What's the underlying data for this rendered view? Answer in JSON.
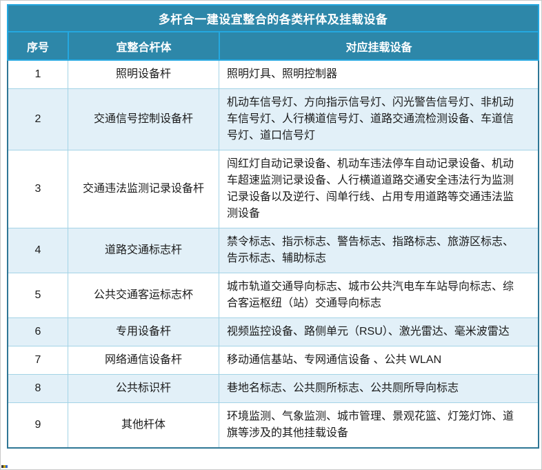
{
  "colors": {
    "header_teal": "#2d87a9",
    "divider_cyan": "#25a8e0",
    "body_outline": "#2e7695",
    "inner_border": "#a3d3e6",
    "stripe_blue": "#e2f0f8",
    "title_text": "#ffffff",
    "body_text": "#1b1b1b"
  },
  "table": {
    "title": "多杆合一建设宜整合的各类杆体及挂载设备",
    "columns": [
      "序号",
      "宜整合杆体",
      "对应挂载设备"
    ],
    "rows": [
      {
        "no": "1",
        "pole": "照明设备杆",
        "devices": "照明灯具、照明控制器"
      },
      {
        "no": "2",
        "pole": "交通信号控制设备杆",
        "devices": "机动车信号灯、方向指示信号灯、闪光警告信号灯、非机动车信号灯、人行横道信号灯、道路交通流检测设备、车道信号灯、道口信号灯"
      },
      {
        "no": "3",
        "pole": "交通违法监测记录设备杆",
        "devices": "闯红灯自动记录设备、机动车违法停车自动记录设备、机动车超速监测记录设备、人行横道道路交通安全违法行为监测记录设备以及逆行、闯单行线、占用专用道路等交通违法监测设备"
      },
      {
        "no": "4",
        "pole": "道路交通标志杆",
        "devices": "禁令标志、指示标志、警告标志、指路标志、旅游区标志、告示标志、辅助标志"
      },
      {
        "no": "5",
        "pole": "公共交通客运标志杯",
        "devices": "城市轨道交通导向标志、城市公共汽电车车站导向标志、综合客运枢纽（站）交通导向标志"
      },
      {
        "no": "6",
        "pole": "专用设备杆",
        "devices": "视频监控设备、路侧单元（RSU）、激光雷达、毫米波雷达"
      },
      {
        "no": "7",
        "pole": "网络通信设备杆",
        "devices": "移动通信基站、专网通信设备 、公共 WLAN"
      },
      {
        "no": "8",
        "pole": "公共标识杆",
        "devices": "巷地名标志、公共厕所标志、公共厕所导向标志"
      },
      {
        "no": "9",
        "pole": "其他杆体",
        "devices": "环境监测、气象监测、城市管理、景观花篮、灯笼灯饰、道旗等涉及的其他挂载设备"
      }
    ]
  }
}
